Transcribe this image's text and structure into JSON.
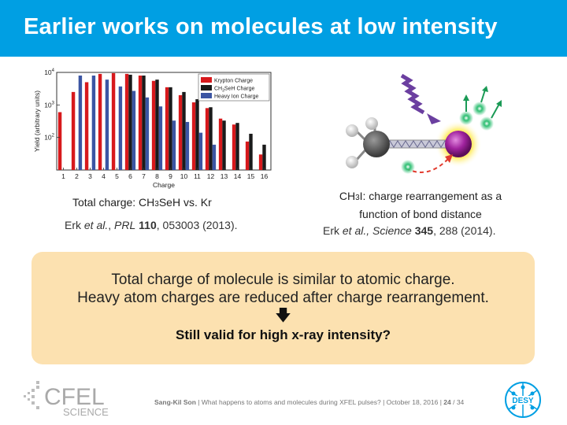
{
  "slide": {
    "title": "Earlier works on molecules at low intensity",
    "left_caption_prefix": "Total charge: CH",
    "left_caption_sub": "3",
    "left_caption_suffix": "SeH vs. Kr",
    "left_ref": {
      "author": "Erk ",
      "etal": "et al.",
      "sep": ", ",
      "journal": "PRL",
      "vol": "110",
      "rest": ", 053003 (2013)."
    },
    "right_caption_prefix": "CH",
    "right_caption_sub": "3",
    "right_caption_line1": "I: charge rearrangement as a",
    "right_caption_line2": "function of bond distance",
    "right_ref": {
      "author": "Erk ",
      "etal": "et al.,",
      "journal": "Science",
      "vol": "345",
      "rest": ", 288 (2014)."
    },
    "callout": {
      "line1": "Total charge of molecule is similar to atomic charge.",
      "line2": "Heavy atom charges are reduced after charge rearrangement.",
      "arrow": "🡇",
      "question": "Still valid for high x-ray intensity?"
    },
    "footer": {
      "author": "Sang-Kil Son",
      "text": " | What happens to atoms and molecules during XFEL pulses? | October 18, 2016 | ",
      "page": "24",
      "total": " / 34"
    },
    "logos": {
      "cfel_top": "CFEL",
      "cfel_bottom": "SCIENCE",
      "desy": "DESY"
    }
  },
  "colors": {
    "title_bar": "#009fe3",
    "callout_bg": "#fce1b0",
    "krypton": "#d7191c",
    "ch3seh": "#1a1a1a",
    "heavy_ion": "#3b55a3"
  },
  "chart_data": {
    "type": "bar",
    "categories": [
      "1",
      "2",
      "3",
      "4",
      "5",
      "6",
      "7",
      "8",
      "9",
      "10",
      "11",
      "12",
      "13",
      "14",
      "15",
      "16"
    ],
    "xlabel": "Charge",
    "ylabel": "Yield (arbitrary units)",
    "yscale": "log",
    "ylim": [
      10,
      10000
    ],
    "yticks": [
      {
        "base": "10",
        "exp": "2"
      },
      {
        "base": "10",
        "exp": "3"
      },
      {
        "base": "10",
        "exp": "4"
      }
    ],
    "legend_position": "top-right",
    "series": [
      {
        "name": "Krypton Charge",
        "color": "#d7191c",
        "values": [
          600,
          2500,
          5000,
          9000,
          9500,
          9000,
          8000,
          5500,
          3500,
          2000,
          1200,
          800,
          380,
          250,
          75,
          30
        ]
      },
      {
        "name_prefix": "CH",
        "name_sub": "3",
        "name_suffix": "SeH Charge",
        "color": "#1a1a1a",
        "values": [
          null,
          null,
          null,
          null,
          null,
          8500,
          8000,
          6000,
          3500,
          2500,
          1500,
          850,
          330,
          280,
          130,
          60
        ]
      },
      {
        "name": "Heavy Ion Charge",
        "color": "#3b55a3",
        "values": [
          null,
          8000,
          8000,
          6000,
          3700,
          2700,
          1700,
          900,
          330,
          300,
          140,
          60,
          null,
          null,
          null,
          null
        ]
      }
    ]
  }
}
